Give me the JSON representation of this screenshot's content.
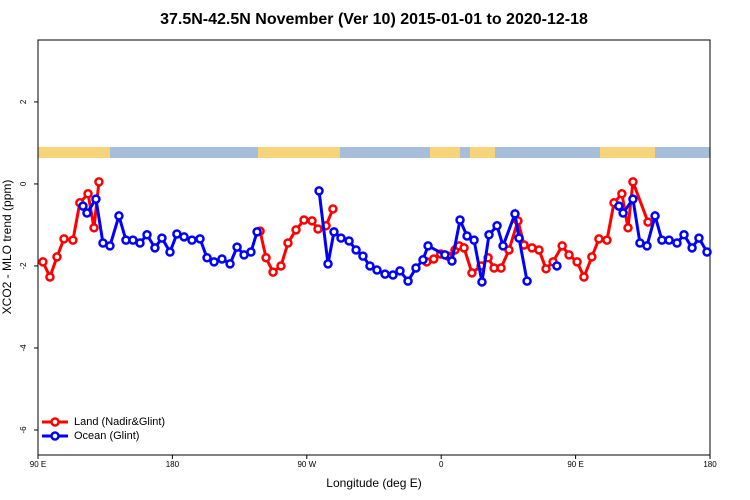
{
  "chart_data": {
    "type": "line",
    "title": "37.5N-42.5N November (Ver 10)   2015-01-01 to 2020-12-18",
    "x_label": "Longitude (deg E)",
    "y_label": "XCO2 - MLO trend (ppm)",
    "xlim": [
      90,
      540
    ],
    "ylim": [
      -6.61,
      3.51
    ],
    "xticks": [
      {
        "value": 90,
        "label": "90 E"
      },
      180,
      {
        "value": 270,
        "label": "90 W"
      },
      {
        "value": 360,
        "label": "0"
      },
      {
        "value": 450,
        "label": "90 E"
      },
      {
        "value": 540,
        "label": "180"
      }
    ],
    "yticks": [
      -6,
      -4,
      -2,
      0,
      2
    ],
    "legend": "bottom-left",
    "series": [
      {
        "name": "Land (Nadir&Glint)",
        "color": "#ff0000",
        "x": [
          93.3,
          98,
          102.7,
          107.4,
          113.4,
          118,
          123.5,
          127.5,
          130.8,
          null,
          238.7,
          242.7,
          247.4,
          252.7,
          257.4,
          262.8,
          268.1,
          273.5,
          277.5,
          282.9,
          287.5,
          null,
          350.3,
          355,
          359.7,
          364.5,
          369.2,
          372,
          375.3,
          380.6,
          386.7,
          391.4,
          395.4,
          400.1,
          405.4,
          411.4,
          415.5,
          420.8,
          425.5,
          430.2,
          434.9,
          441,
          445.6,
          451,
          455.6,
          460.9,
          465.6,
          471,
          475.7,
          481,
          485.1,
          488.4,
          498.5
        ],
        "values": [
          -1.9,
          -2.27,
          -1.78,
          -1.34,
          -1.37,
          -0.46,
          -0.24,
          -1.07,
          0.05,
          null,
          -1.15,
          -1.8,
          -2.15,
          -2.0,
          -1.44,
          -1.12,
          -0.88,
          -0.9,
          -1.1,
          -1.02,
          -0.61,
          null,
          -1.9,
          -1.83,
          -1.71,
          -1.76,
          -1.61,
          -1.51,
          -1.56,
          -2.17,
          -2.0,
          -1.8,
          -2.05,
          -2.05,
          -1.61,
          -0.9,
          -1.49,
          -1.56,
          -1.61,
          -2.07,
          -1.9,
          -1.51,
          -1.73,
          -1.9,
          -2.27,
          -1.78,
          -1.34,
          -1.37,
          -0.46,
          -0.24,
          -1.07,
          0.05,
          -0.93
        ]
      },
      {
        "name": "Ocean (Glint)",
        "color": "#0000ff",
        "x": [
          120.1,
          122.8,
          128.8,
          133.5,
          138.2,
          144.2,
          148.9,
          153.6,
          158.3,
          163,
          168.3,
          173,
          178.4,
          183,
          187.8,
          193.1,
          198.5,
          203.2,
          207.9,
          213.2,
          218.6,
          223.3,
          228,
          232.6,
          236.7,
          null,
          278.2,
          284.2,
          288.2,
          292.9,
          298.3,
          303,
          307.6,
          312.3,
          317,
          322.4,
          327.7,
          332.4,
          337.8,
          343.1,
          347.8,
          351.2,
          362.5,
          367.2,
          372.6,
          377.3,
          382,
          387.3,
          392,
          397.4,
          401.4,
          409.4,
          412.1,
          417.5,
          null,
          437.5,
          null,
          479,
          481.8,
          488.4,
          493.1,
          497.8,
          503.2,
          507.8,
          512.6,
          517.9,
          522.6,
          528,
          532.6,
          538
        ],
        "values": [
          -0.54,
          -0.71,
          -0.37,
          -1.44,
          -1.51,
          -0.78,
          -1.37,
          -1.37,
          -1.44,
          -1.24,
          -1.56,
          -1.32,
          -1.66,
          -1.22,
          -1.29,
          -1.37,
          -1.34,
          -1.8,
          -1.9,
          -1.83,
          -1.95,
          -1.54,
          -1.73,
          -1.66,
          -1.17,
          null,
          -0.17,
          -1.95,
          -1.17,
          -1.32,
          -1.39,
          -1.61,
          -1.76,
          -2.0,
          -2.1,
          -2.2,
          -2.22,
          -2.12,
          -2.37,
          -2.05,
          -1.85,
          -1.51,
          -1.73,
          -1.88,
          -0.88,
          -1.27,
          -1.37,
          -2.39,
          -1.24,
          -1.02,
          -1.51,
          -0.73,
          -1.32,
          -2.37,
          null,
          -2.0,
          null,
          -0.54,
          -0.71,
          -0.37,
          -1.44,
          -1.51,
          -0.78,
          -1.37,
          -1.37,
          -1.44,
          -1.24,
          -1.56,
          -1.32,
          -1.66
        ]
      }
    ]
  }
}
